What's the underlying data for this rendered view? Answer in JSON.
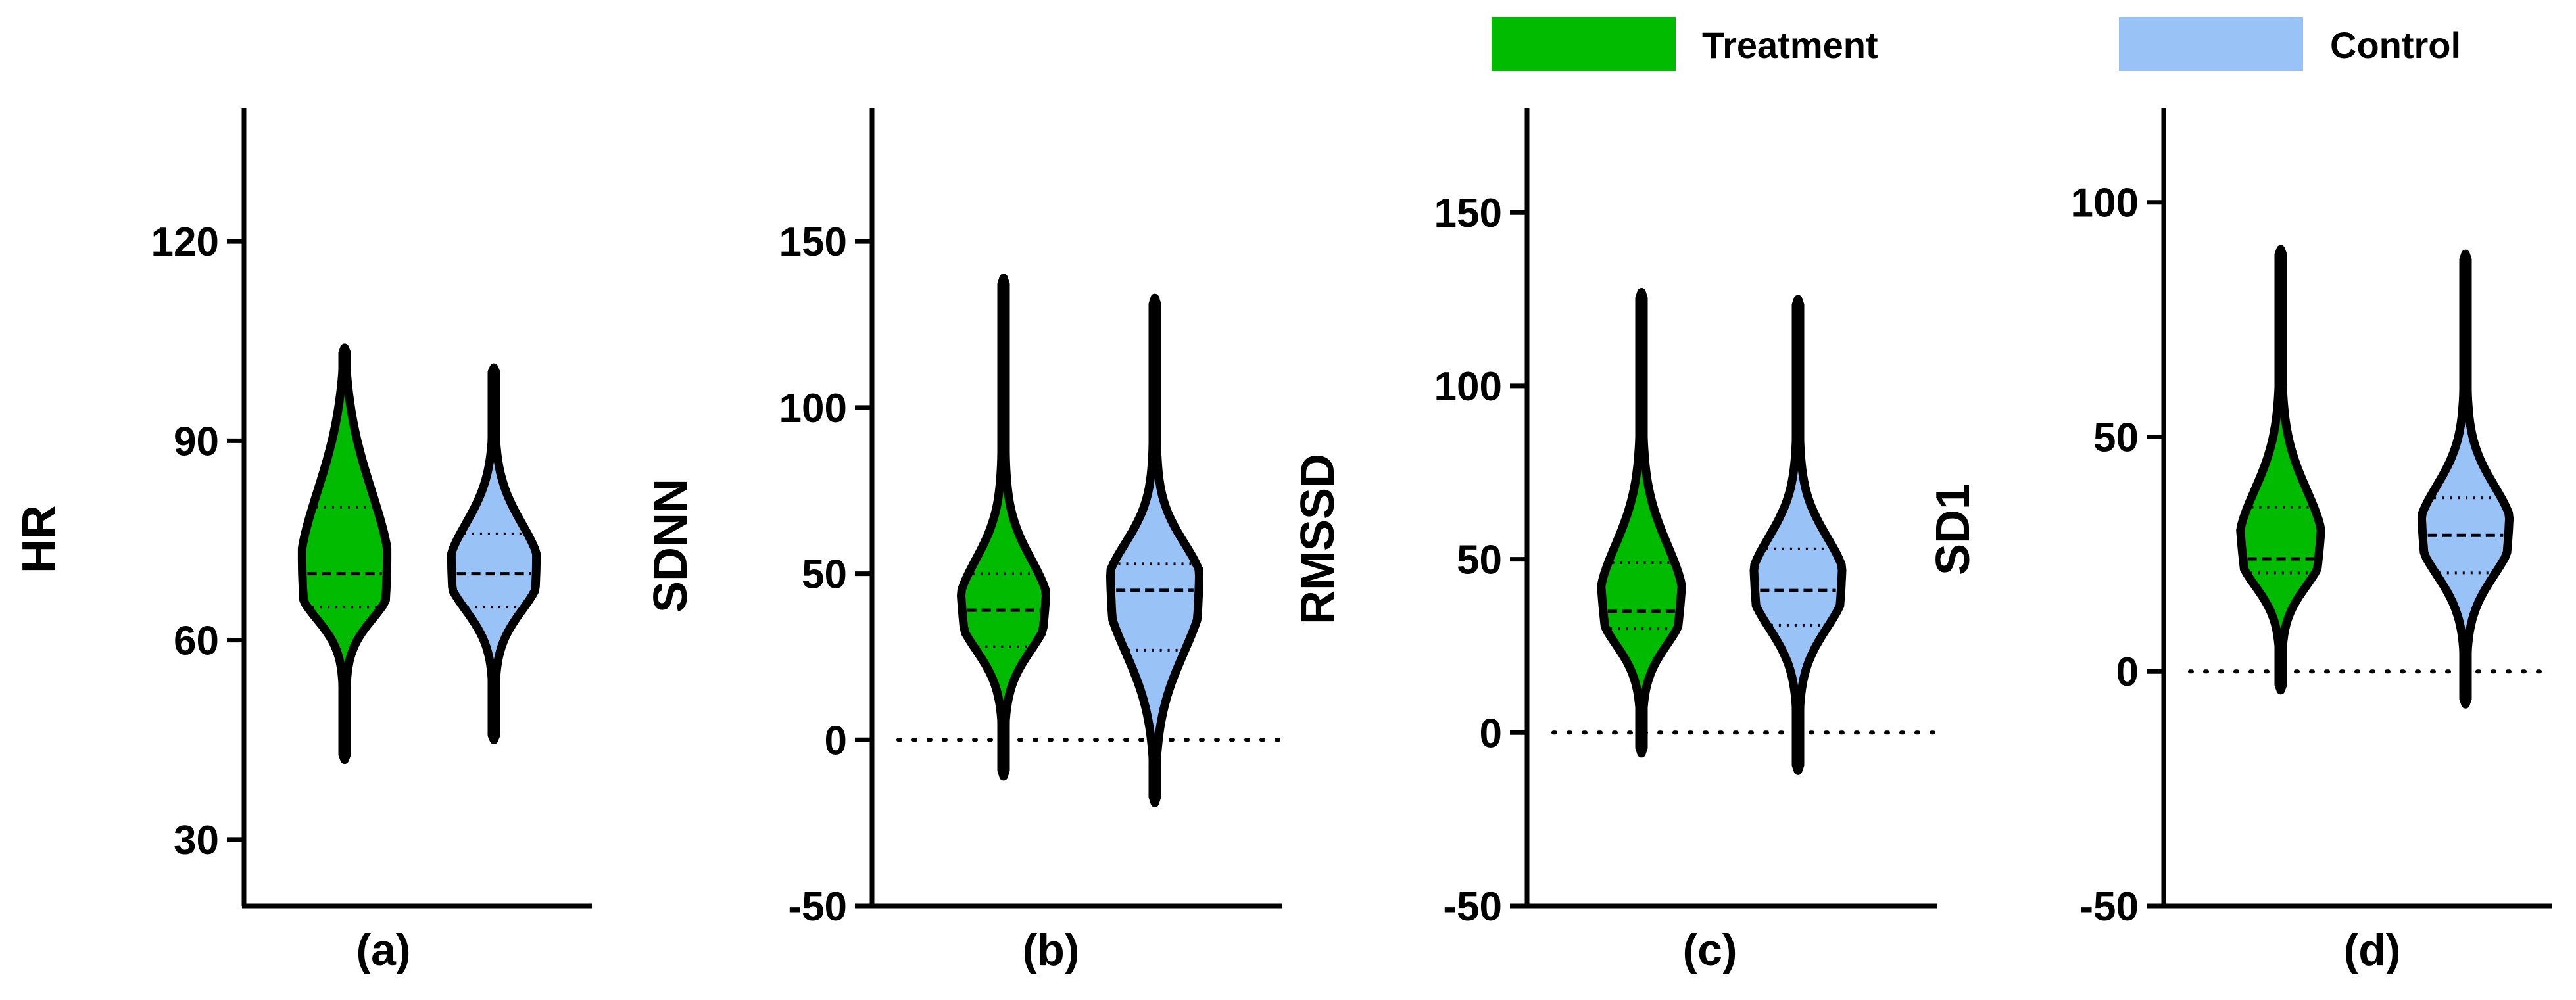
{
  "legend": {
    "position": "top-right",
    "entries": [
      {
        "label": "Treatment",
        "color": "#00BB00"
      },
      {
        "label": "Control",
        "color": "#99C2F7"
      }
    ]
  },
  "colors": {
    "treatment": "#00BB00",
    "control": "#99C2F7",
    "outline": "#000000"
  },
  "chart_data": [
    {
      "type": "violin",
      "panel_label": "(a)",
      "ylabel": "HR",
      "ylim": [
        20,
        140
      ],
      "yticks": [
        30,
        60,
        90,
        120
      ],
      "ytick_labels": [
        "30",
        "60",
        "90",
        "120"
      ],
      "zero_line": false,
      "series": [
        {
          "name": "Treatment",
          "min": 42,
          "max": 104,
          "q1": 65,
          "median": 70,
          "q3": 80,
          "peak": 68,
          "spread": 0.95
        },
        {
          "name": "Control",
          "min": 45,
          "max": 101,
          "q1": 65,
          "median": 70,
          "q3": 76,
          "peak": 70,
          "spread": 0.95
        }
      ]
    },
    {
      "type": "violin",
      "panel_label": "(b)",
      "ylabel": "SDNN",
      "ylim": [
        -50,
        190
      ],
      "yticks": [
        -50,
        0,
        50,
        100,
        150
      ],
      "ytick_labels": [
        "-50",
        "0",
        "50",
        "100",
        "150"
      ],
      "zero_line": true,
      "series": [
        {
          "name": "Treatment",
          "min": -11,
          "max": 139,
          "q1": 28,
          "median": 39,
          "q3": 50,
          "peak": 38,
          "spread": 1.0
        },
        {
          "name": "Control",
          "min": -19,
          "max": 133,
          "q1": 27,
          "median": 45,
          "q3": 53,
          "peak": 45,
          "spread": 1.0
        }
      ]
    },
    {
      "type": "violin",
      "panel_label": "(c)",
      "ylabel": "RMSSD",
      "ylim": [
        -50,
        180
      ],
      "yticks": [
        -50,
        0,
        50,
        100,
        150
      ],
      "ytick_labels": [
        "-50",
        "0",
        "50",
        "100",
        "150"
      ],
      "zero_line": true,
      "series": [
        {
          "name": "Treatment",
          "min": -6,
          "max": 127,
          "q1": 30,
          "median": 35,
          "q3": 49,
          "peak": 35,
          "spread": 0.95
        },
        {
          "name": "Control",
          "min": -11,
          "max": 125,
          "q1": 31,
          "median": 41,
          "q3": 53,
          "peak": 42,
          "spread": 1.0
        }
      ]
    },
    {
      "type": "violin",
      "panel_label": "(d)",
      "ylabel": "SD1",
      "ylim": [
        -50,
        120
      ],
      "yticks": [
        -50,
        0,
        50,
        100
      ],
      "ytick_labels": [
        "-50",
        "0",
        "50",
        "100"
      ],
      "zero_line": true,
      "series": [
        {
          "name": "Treatment",
          "min": -4,
          "max": 90,
          "q1": 21,
          "median": 24,
          "q3": 35,
          "peak": 25,
          "spread": 0.95
        },
        {
          "name": "Control",
          "min": -7,
          "max": 89,
          "q1": 21,
          "median": 29,
          "q3": 37,
          "peak": 29,
          "spread": 1.0
        }
      ]
    }
  ]
}
